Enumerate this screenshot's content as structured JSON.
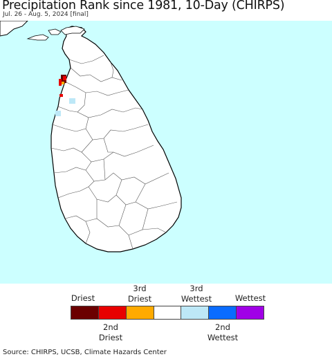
{
  "title": "Precipitation Rank since 1981, 10-Day (CHIRPS)",
  "subtitle": "Jul. 26 - Aug. 5, 2024 [final]",
  "colors": {
    "ocean": "#ccffff",
    "land": "#ffffff",
    "border": "#000000"
  },
  "legend": {
    "top_labels": [
      {
        "line1": "",
        "line2": "Driest"
      },
      {
        "line1": "3rd",
        "line2": "Driest"
      },
      {
        "line1": "3rd",
        "line2": "Wettest"
      },
      {
        "line1": "",
        "line2": "Wettest"
      }
    ],
    "bottom_labels": [
      {
        "line1": "2nd",
        "line2": "Driest"
      },
      {
        "line1": "2nd",
        "line2": "Wettest"
      }
    ],
    "swatches": [
      "#6b0000",
      "#e80000",
      "#ffaa00",
      "#ffffff",
      "#bde8f7",
      "#0a6cff",
      "#a000e6"
    ]
  },
  "source": "Source: CHIRPS, UCSB, Climate Hazards Center"
}
